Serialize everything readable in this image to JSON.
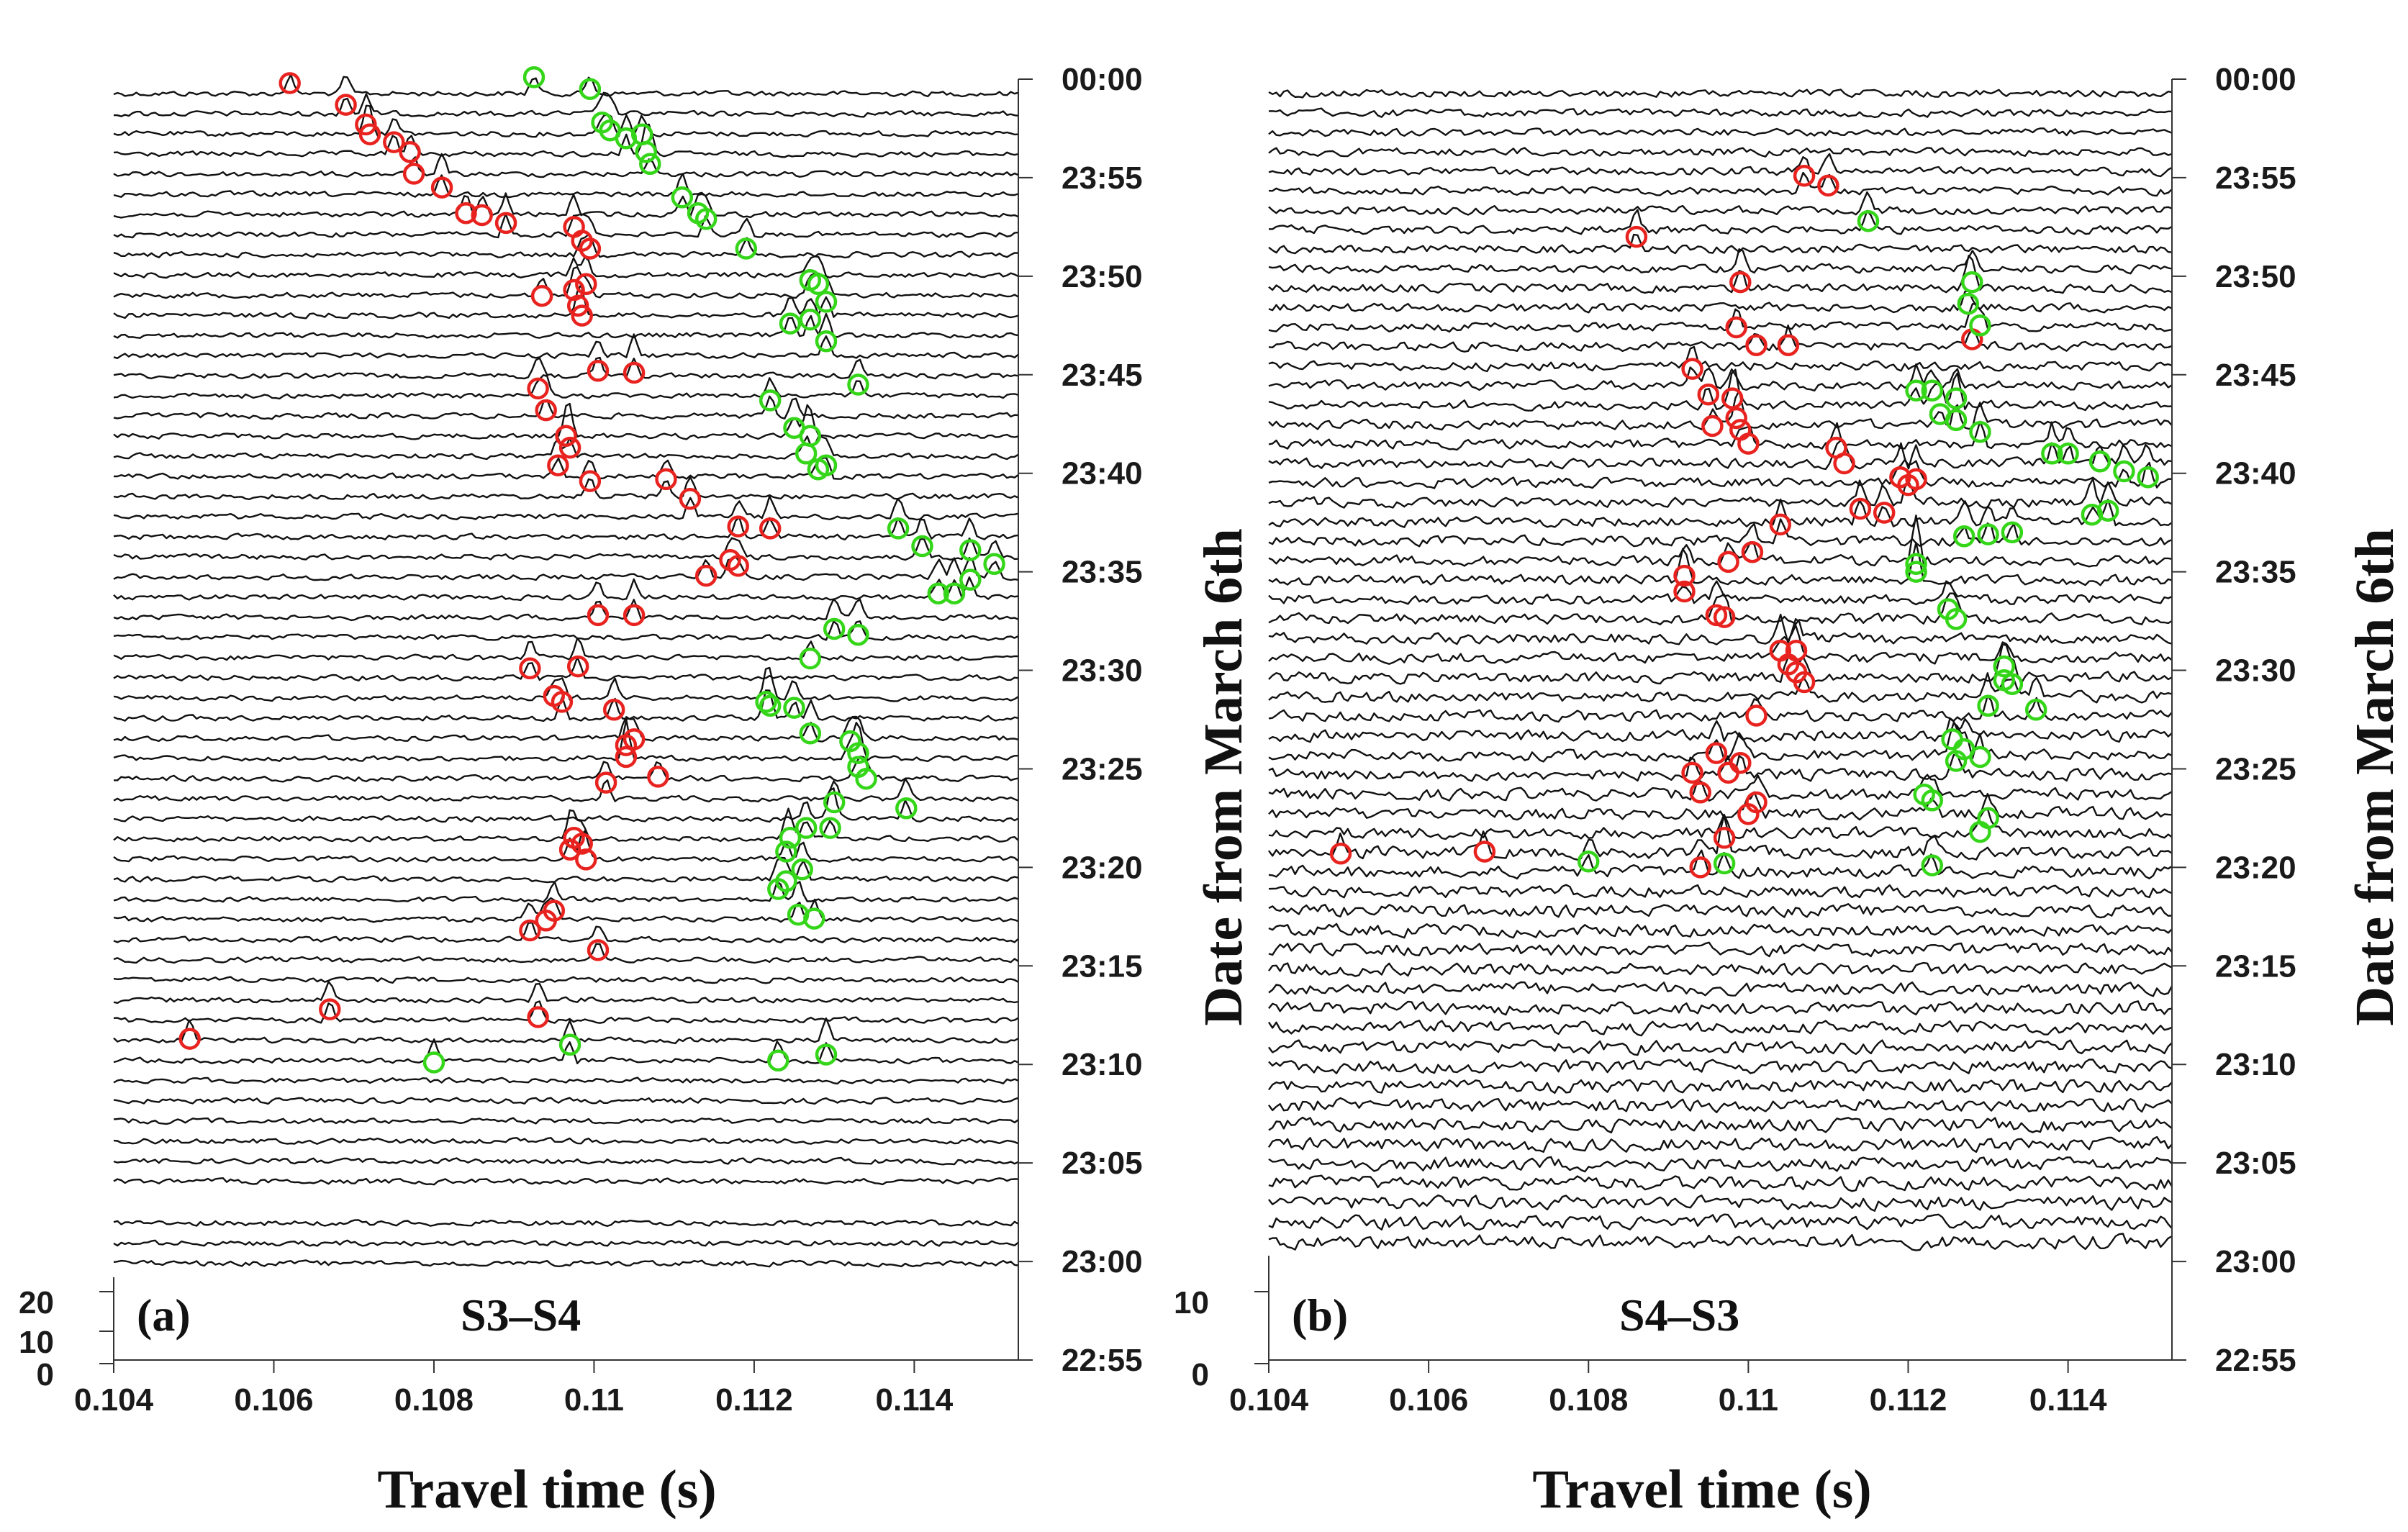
{
  "colors": {
    "trace": "#111111",
    "red_pick": "#e8231f",
    "green_pick": "#35d61a",
    "axis": "#333333",
    "text": "#1a1a1a"
  },
  "chart_data": [
    {
      "panel": "a",
      "type": "line",
      "subtype": "seismic-waveform-stack",
      "panel_label": "(a)",
      "title": "S3–S4",
      "xlabel": "Travel time (s)",
      "ylabel": "Date from March 6th",
      "xlim": [
        0.104,
        0.1153
      ],
      "x_ticks": [
        0.104,
        0.106,
        0.108,
        0.11,
        0.112,
        0.114
      ],
      "x_tick_labels": [
        "0.104",
        "0.106",
        "0.108",
        "0.11",
        "0.112",
        "0.114"
      ],
      "time_axis_minutes_after_22_55": [
        0,
        5,
        10,
        15,
        20,
        25,
        30,
        35,
        40,
        45,
        50,
        55,
        60,
        65
      ],
      "time_tick_labels": [
        "22:55",
        "23:00",
        "23:05",
        "23:10",
        "23:15",
        "23:20",
        "23:25",
        "23:30",
        "23:35",
        "23:40",
        "23:45",
        "23:50",
        "23:55",
        "00:00"
      ],
      "amplitude_ticks": [
        0,
        10,
        20
      ],
      "amplitude_tick_labels": [
        "0",
        "10",
        "20"
      ],
      "traces": {
        "count": 58,
        "time_range": [
          "23:01",
          "00:00"
        ],
        "gap_between": [
          "23:03",
          "23:06"
        ]
      },
      "red_picks": [
        [
          0.1062,
          64.8
        ],
        [
          0.1069,
          63.7
        ],
        [
          0.10715,
          62.7
        ],
        [
          0.1072,
          62.2
        ],
        [
          0.1075,
          61.8
        ],
        [
          0.1077,
          61.3
        ],
        [
          0.10775,
          60.2
        ],
        [
          0.1081,
          59.5
        ],
        [
          0.1084,
          58.2
        ],
        [
          0.1086,
          58.1
        ],
        [
          0.1089,
          57.7
        ],
        [
          0.10975,
          57.5
        ],
        [
          0.10985,
          56.8
        ],
        [
          0.10935,
          54.0
        ],
        [
          0.1098,
          53.5
        ],
        [
          0.10975,
          54.3
        ],
        [
          0.10985,
          53.0
        ],
        [
          0.1099,
          54.6
        ],
        [
          0.10995,
          56.4
        ],
        [
          0.11005,
          50.2
        ],
        [
          0.1105,
          50.1
        ],
        [
          0.1093,
          49.3
        ],
        [
          0.1094,
          48.2
        ],
        [
          0.10965,
          46.9
        ],
        [
          0.1097,
          46.3
        ],
        [
          0.10955,
          45.4
        ],
        [
          0.10995,
          44.6
        ],
        [
          0.1109,
          44.7
        ],
        [
          0.1112,
          43.7
        ],
        [
          0.1118,
          42.3
        ],
        [
          0.1122,
          42.2
        ],
        [
          0.1117,
          40.6
        ],
        [
          0.1118,
          40.3
        ],
        [
          0.1114,
          39.8
        ],
        [
          0.11005,
          37.8
        ],
        [
          0.1105,
          37.8
        ],
        [
          0.1098,
          35.2
        ],
        [
          0.1092,
          35.1
        ],
        [
          0.1095,
          33.7
        ],
        [
          0.1096,
          33.4
        ],
        [
          0.11025,
          33.0
        ],
        [
          0.1105,
          31.5
        ],
        [
          0.1104,
          31.2
        ],
        [
          0.1104,
          30.6
        ],
        [
          0.11015,
          29.3
        ],
        [
          0.1108,
          29.6
        ],
        [
          0.10975,
          26.5
        ],
        [
          0.10985,
          26.2
        ],
        [
          0.1097,
          25.9
        ],
        [
          0.1099,
          25.4
        ],
        [
          0.1095,
          22.8
        ],
        [
          0.1094,
          22.3
        ],
        [
          0.1092,
          21.8
        ],
        [
          0.11005,
          20.8
        ],
        [
          0.1093,
          17.4
        ],
        [
          0.1067,
          17.8
        ],
        [
          0.10495,
          16.3
        ]
      ],
      "green_picks": [
        [
          0.10925,
          65.1
        ],
        [
          0.10995,
          64.5
        ],
        [
          0.1101,
          62.8
        ],
        [
          0.1102,
          62.4
        ],
        [
          0.1104,
          62.0
        ],
        [
          0.1106,
          62.2
        ],
        [
          0.11065,
          61.3
        ],
        [
          0.1107,
          60.7
        ],
        [
          0.1111,
          59.0
        ],
        [
          0.1113,
          58.2
        ],
        [
          0.1114,
          57.9
        ],
        [
          0.1119,
          56.4
        ],
        [
          0.1127,
          54.8
        ],
        [
          0.1128,
          54.6
        ],
        [
          0.1129,
          53.7
        ],
        [
          0.1127,
          52.8
        ],
        [
          0.11245,
          52.6
        ],
        [
          0.1129,
          51.7
        ],
        [
          0.1133,
          49.5
        ],
        [
          0.1122,
          48.7
        ],
        [
          0.1125,
          47.3
        ],
        [
          0.1127,
          46.9
        ],
        [
          0.11265,
          46.0
        ],
        [
          0.1129,
          45.4
        ],
        [
          0.1128,
          45.2
        ],
        [
          0.1138,
          42.2
        ],
        [
          0.1141,
          41.3
        ],
        [
          0.1147,
          41.1
        ],
        [
          0.115,
          40.4
        ],
        [
          0.1147,
          39.6
        ],
        [
          0.1145,
          38.9
        ],
        [
          0.1143,
          38.9
        ],
        [
          0.113,
          37.1
        ],
        [
          0.1133,
          36.8
        ],
        [
          0.1127,
          35.6
        ],
        [
          0.11215,
          33.4
        ],
        [
          0.1122,
          33.2
        ],
        [
          0.1125,
          33.1
        ],
        [
          0.1127,
          31.8
        ],
        [
          0.1132,
          31.4
        ],
        [
          0.1133,
          30.8
        ],
        [
          0.1133,
          30.1
        ],
        [
          0.1134,
          29.5
        ],
        [
          0.113,
          28.3
        ],
        [
          0.1139,
          28.0
        ],
        [
          0.11265,
          27.0
        ],
        [
          0.11295,
          27.0
        ],
        [
          0.11245,
          26.5
        ],
        [
          0.1124,
          25.8
        ],
        [
          0.1126,
          24.9
        ],
        [
          0.1124,
          24.3
        ],
        [
          0.1123,
          23.9
        ],
        [
          0.11255,
          22.6
        ],
        [
          0.11275,
          22.4
        ],
        [
          0.1097,
          16.0
        ],
        [
          0.108,
          15.1
        ],
        [
          0.1123,
          15.2
        ],
        [
          0.1129,
          15.5
        ]
      ]
    },
    {
      "panel": "b",
      "type": "line",
      "subtype": "seismic-waveform-stack",
      "panel_label": "(b)",
      "title": "S4–S3",
      "xlabel": "Travel time (s)",
      "ylabel": "Date from March 6th",
      "xlim": [
        0.104,
        0.1153
      ],
      "x_ticks": [
        0.104,
        0.106,
        0.108,
        0.11,
        0.112,
        0.114
      ],
      "x_tick_labels": [
        "0.104",
        "0.106",
        "0.108",
        "0.11",
        "0.112",
        "0.114"
      ],
      "time_axis_minutes_after_22_55": [
        0,
        5,
        10,
        15,
        20,
        25,
        30,
        35,
        40,
        45,
        50,
        55,
        60,
        65
      ],
      "time_tick_labels": [
        "22:55",
        "23:00",
        "23:05",
        "23:10",
        "23:15",
        "23:20",
        "23:25",
        "23:30",
        "23:35",
        "23:40",
        "23:45",
        "23:50",
        "23:55",
        "00:00"
      ],
      "amplitude_ticks": [
        0,
        10
      ],
      "amplitude_tick_labels": [
        "0",
        "10"
      ],
      "traces": {
        "count": 60,
        "time_range": [
          "23:01",
          "00:00"
        ]
      },
      "red_picks": [
        [
          0.1107,
          60.1
        ],
        [
          0.111,
          59.6
        ],
        [
          0.1086,
          57.0
        ],
        [
          0.1099,
          54.7
        ],
        [
          0.10985,
          52.4
        ],
        [
          0.1101,
          51.5
        ],
        [
          0.1105,
          51.5
        ],
        [
          0.1128,
          51.8
        ],
        [
          0.1093,
          50.3
        ],
        [
          0.1095,
          49.0
        ],
        [
          0.1098,
          48.8
        ],
        [
          0.10985,
          47.8
        ],
        [
          0.1099,
          47.2
        ],
        [
          0.10955,
          47.4
        ],
        [
          0.11,
          46.5
        ],
        [
          0.1111,
          46.3
        ],
        [
          0.1112,
          45.5
        ],
        [
          0.1119,
          44.8
        ],
        [
          0.112,
          44.4
        ],
        [
          0.1121,
          44.7
        ],
        [
          0.1114,
          43.2
        ],
        [
          0.1117,
          43.0
        ],
        [
          0.1104,
          42.4
        ],
        [
          0.11005,
          41.0
        ],
        [
          0.10975,
          40.5
        ],
        [
          0.1092,
          39.8
        ],
        [
          0.1092,
          39.0
        ],
        [
          0.1096,
          37.8
        ],
        [
          0.1097,
          37.7
        ],
        [
          0.1104,
          36.0
        ],
        [
          0.1106,
          36.0
        ],
        [
          0.1105,
          35.3
        ],
        [
          0.1106,
          34.9
        ],
        [
          0.1107,
          34.4
        ],
        [
          0.1101,
          32.7
        ],
        [
          0.1096,
          30.8
        ],
        [
          0.1099,
          30.3
        ],
        [
          0.1093,
          29.8
        ],
        [
          0.10975,
          29.8
        ],
        [
          0.1094,
          28.8
        ],
        [
          0.1101,
          28.3
        ],
        [
          0.11,
          27.7
        ],
        [
          0.1097,
          26.5
        ],
        [
          0.1094,
          25.0
        ],
        [
          0.1067,
          25.8
        ],
        [
          0.1049,
          25.7
        ]
      ],
      "green_picks": [
        [
          0.1115,
          57.8
        ],
        [
          0.1128,
          54.7
        ],
        [
          0.11275,
          53.6
        ],
        [
          0.1129,
          52.5
        ],
        [
          0.1121,
          49.2
        ],
        [
          0.1123,
          49.2
        ],
        [
          0.1126,
          48.8
        ],
        [
          0.1124,
          48.0
        ],
        [
          0.1126,
          47.7
        ],
        [
          0.1129,
          47.1
        ],
        [
          0.1138,
          46.0
        ],
        [
          0.114,
          46.0
        ],
        [
          0.1144,
          45.6
        ],
        [
          0.1147,
          45.1
        ],
        [
          0.115,
          44.8
        ],
        [
          0.1145,
          43.1
        ],
        [
          0.1143,
          42.9
        ],
        [
          0.1127,
          41.8
        ],
        [
          0.113,
          41.9
        ],
        [
          0.1133,
          42.0
        ],
        [
          0.1121,
          40.4
        ],
        [
          0.1121,
          40.0
        ],
        [
          0.1125,
          38.1
        ],
        [
          0.1126,
          37.6
        ],
        [
          0.1132,
          35.2
        ],
        [
          0.1132,
          34.5
        ],
        [
          0.1133,
          34.3
        ],
        [
          0.113,
          33.2
        ],
        [
          0.1136,
          33.0
        ],
        [
          0.11255,
          31.5
        ],
        [
          0.1127,
          31.0
        ],
        [
          0.1126,
          30.4
        ],
        [
          0.1129,
          30.6
        ],
        [
          0.1122,
          28.7
        ],
        [
          0.1123,
          28.4
        ],
        [
          0.113,
          27.5
        ],
        [
          0.1129,
          26.8
        ],
        [
          0.1097,
          25.2
        ],
        [
          0.108,
          25.3
        ],
        [
          0.1123,
          25.1
        ]
      ]
    }
  ]
}
